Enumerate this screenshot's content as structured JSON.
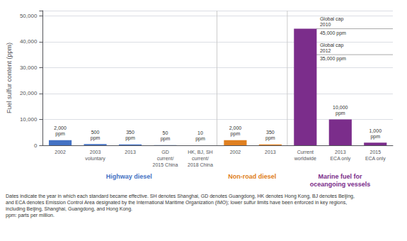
{
  "chart_data": {
    "type": "bar",
    "categories": [
      "2002",
      "2003\nvoluntary",
      "2013",
      "GD\ncurrent/\n2015 China",
      "HK, BJ, SH\ncurrent/\n2018 China",
      "2002",
      "2013",
      "Current\nworldwide",
      "2013\nECA only",
      "2015\nECA only"
    ],
    "values": [
      2000,
      500,
      350,
      50,
      10,
      2000,
      350,
      45000,
      10000,
      1000
    ],
    "colors": [
      "#4472c4",
      "#4472c4",
      "#4472c4",
      "#4472c4",
      "#4472c4",
      "#e08020",
      "#e08020",
      "#7b2d8b",
      "#7b2d8b",
      "#7b2d8b"
    ],
    "data_labels": true,
    "value_labels": [
      "2,000\nppm",
      "500\nppm",
      "350\nppm",
      "50\nppm",
      "10\nppm",
      "2,000\nppm",
      "350\nppm",
      null,
      "10,000\nppm",
      "1,000\nppm"
    ],
    "ylabel": "Fuel sulfur content (ppm)",
    "ylim": [
      0,
      52000
    ],
    "yticks": [
      0,
      {
        "value": 10000,
        "label": "10,000"
      },
      {
        "value": 20000,
        "label": "20,000"
      },
      {
        "value": 30000,
        "label": "30,000"
      },
      {
        "value": 40000,
        "label": "40,000"
      },
      {
        "value": 50000,
        "label": "50,000"
      }
    ],
    "grid": true,
    "groups": [
      {
        "label": "Highway diesel",
        "color": "#4472c4"
      },
      {
        "label": "Non-road diesel",
        "color": "#e08020"
      },
      {
        "label": "Marine fuel for\noceangoing vessels",
        "color": "#7b2d8b"
      }
    ],
    "reference_lines": [
      {
        "value": 45000,
        "label": "Global cap\n2010",
        "value_label": "45,000 ppm"
      },
      {
        "value": 35000,
        "label": "Global cap\n2012",
        "value_label": "35,000 ppm"
      }
    ],
    "footnotes": [
      "Dates indicate the year in which each standard became effective. SH denotes Shanghai, GD denotes Guangdong, HK denotes Hong Kong, BJ denotes Beijing,",
      "and ECA denotes Emission Control Area designated by the International Maritime Organization (IMO); lower sulfur limits have been enforced in key regions,",
      "including Beijing, Shanghai, Guangdong, and Hong Kong.",
      "ppm: parts per million."
    ]
  }
}
